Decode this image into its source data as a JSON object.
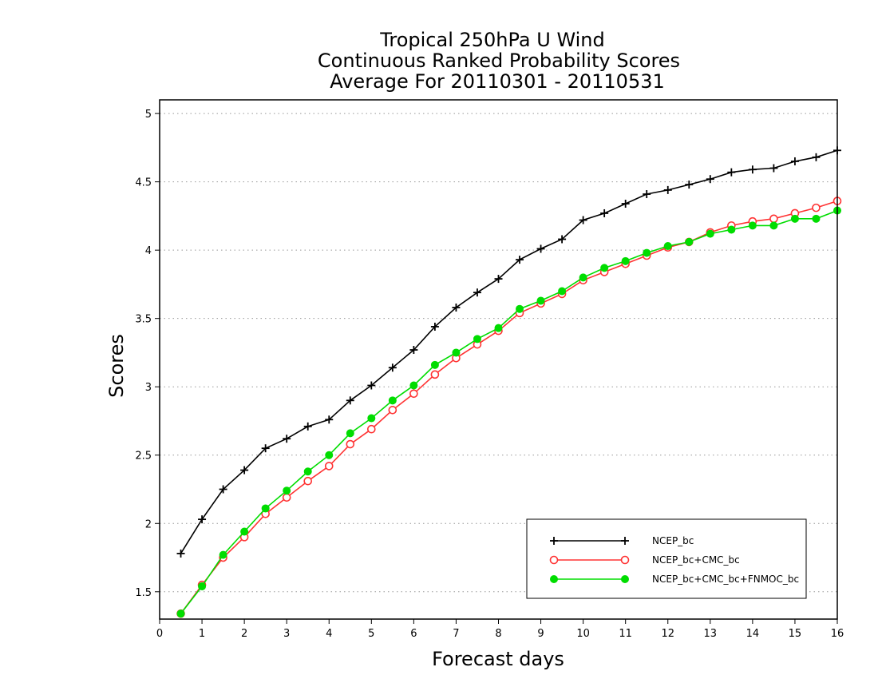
{
  "chart_data": {
    "type": "line",
    "title_lines": [
      "Tropical 250hPa U Wind",
      "Continuous Ranked Probability Scores",
      "Average For 20110301 - 20110531"
    ],
    "xlabel": "Forecast days",
    "ylabel": "Scores",
    "xlim": [
      0,
      16
    ],
    "ylim": [
      1.3,
      5.1
    ],
    "xticks": [
      "0",
      "1",
      "2",
      "3",
      "4",
      "5",
      "6",
      "7",
      "8",
      "9",
      "10",
      "11",
      "12",
      "13",
      "14",
      "15",
      "16"
    ],
    "yticks": [
      "1.5",
      "2",
      "2.5",
      "3",
      "3.5",
      "4",
      "4.5",
      "5"
    ],
    "grid": "horizontal-dotted",
    "legend_position": "bottom-right",
    "x": [
      0.5,
      1,
      1.5,
      2,
      2.5,
      3,
      3.5,
      4,
      4.5,
      5,
      5.5,
      6,
      6.5,
      7,
      7.5,
      8,
      8.5,
      9,
      9.5,
      10,
      10.5,
      11,
      11.5,
      12,
      12.5,
      13,
      13.5,
      14,
      14.5,
      15,
      15.5,
      16
    ],
    "series": [
      {
        "name": "NCEP_bc",
        "color": "#000000",
        "marker": "plus",
        "values": [
          1.78,
          2.03,
          2.25,
          2.39,
          2.55,
          2.62,
          2.71,
          2.76,
          2.9,
          3.01,
          3.14,
          3.27,
          3.44,
          3.58,
          3.69,
          3.79,
          3.93,
          4.01,
          4.08,
          4.22,
          4.27,
          4.34,
          4.41,
          4.44,
          4.48,
          4.52,
          4.57,
          4.59,
          4.6,
          4.65,
          4.68,
          4.73
        ]
      },
      {
        "name": "NCEP_bc+CMC_bc",
        "color": "#ff3333",
        "marker": "open-circle",
        "values": [
          1.34,
          1.55,
          1.75,
          1.9,
          2.07,
          2.19,
          2.31,
          2.42,
          2.58,
          2.69,
          2.83,
          2.95,
          3.09,
          3.21,
          3.31,
          3.41,
          3.54,
          3.61,
          3.68,
          3.78,
          3.84,
          3.9,
          3.96,
          4.02,
          4.06,
          4.13,
          4.18,
          4.21,
          4.23,
          4.27,
          4.31,
          4.36
        ]
      },
      {
        "name": "NCEP_bc+CMC_bc+FNMOC_bc",
        "color": "#00dd00",
        "marker": "filled-circle",
        "values": [
          1.34,
          1.54,
          1.77,
          1.94,
          2.11,
          2.24,
          2.38,
          2.5,
          2.66,
          2.77,
          2.9,
          3.01,
          3.16,
          3.25,
          3.35,
          3.43,
          3.57,
          3.63,
          3.7,
          3.8,
          3.87,
          3.92,
          3.98,
          4.03,
          4.06,
          4.12,
          4.15,
          4.18,
          4.18,
          4.23,
          4.23,
          4.29
        ]
      }
    ]
  }
}
